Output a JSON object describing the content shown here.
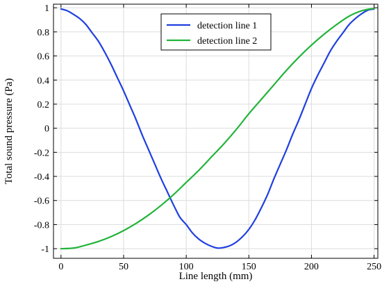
{
  "chart_data": {
    "type": "line",
    "title": "",
    "xlabel": "Line length (mm)",
    "ylabel": "Total sound pressure (Pa)",
    "xlim": [
      -6,
      253
    ],
    "ylim": [
      -1.08,
      1.03
    ],
    "xticks": [
      0,
      50,
      100,
      150,
      200,
      250
    ],
    "yticks": [
      -1,
      -0.8,
      -0.6,
      -0.4,
      -0.2,
      0,
      0.2,
      0.4,
      0.6,
      0.8,
      1
    ],
    "xtick_labels": [
      "0",
      "50",
      "100",
      "150",
      "200",
      "250"
    ],
    "ytick_labels": [
      "-1",
      "-0.8",
      "-0.6",
      "-0.4",
      "-0.2",
      "0",
      "0.2",
      "0.4",
      "0.6",
      "0.8",
      "1"
    ],
    "grid": true,
    "legend_position": "top-center",
    "series": [
      {
        "name": "detection line 1",
        "color": "#1f3fe0",
        "x": [
          0,
          5,
          10,
          15,
          20,
          25,
          30,
          35,
          40,
          45,
          50,
          55,
          60,
          65,
          70,
          75,
          80,
          85,
          90,
          95,
          100,
          105,
          110,
          115,
          120,
          125,
          130,
          135,
          140,
          145,
          150,
          155,
          160,
          165,
          170,
          175,
          180,
          185,
          190,
          195,
          200,
          205,
          210,
          215,
          220,
          225,
          230,
          235,
          240,
          245,
          250
        ],
        "y": [
          0.99,
          0.975,
          0.945,
          0.91,
          0.86,
          0.79,
          0.72,
          0.63,
          0.53,
          0.42,
          0.31,
          0.19,
          0.07,
          -0.06,
          -0.18,
          -0.3,
          -0.42,
          -0.53,
          -0.64,
          -0.74,
          -0.8,
          -0.87,
          -0.92,
          -0.955,
          -0.98,
          -0.995,
          -0.99,
          -0.975,
          -0.945,
          -0.9,
          -0.84,
          -0.76,
          -0.66,
          -0.55,
          -0.42,
          -0.3,
          -0.18,
          -0.05,
          0.07,
          0.2,
          0.33,
          0.44,
          0.54,
          0.64,
          0.72,
          0.79,
          0.86,
          0.91,
          0.95,
          0.98,
          0.99
        ]
      },
      {
        "name": "detection line 2",
        "color": "#22b43a",
        "x": [
          0,
          10,
          20,
          30,
          40,
          50,
          60,
          70,
          80,
          90,
          100,
          110,
          120,
          130,
          140,
          150,
          160,
          170,
          180,
          190,
          200,
          210,
          220,
          230,
          240,
          250
        ],
        "y": [
          -1.0,
          -0.995,
          -0.97,
          -0.94,
          -0.9,
          -0.85,
          -0.79,
          -0.72,
          -0.64,
          -0.55,
          -0.45,
          -0.35,
          -0.24,
          -0.13,
          -0.01,
          0.12,
          0.24,
          0.36,
          0.48,
          0.59,
          0.69,
          0.78,
          0.86,
          0.93,
          0.975,
          0.995
        ]
      }
    ]
  }
}
